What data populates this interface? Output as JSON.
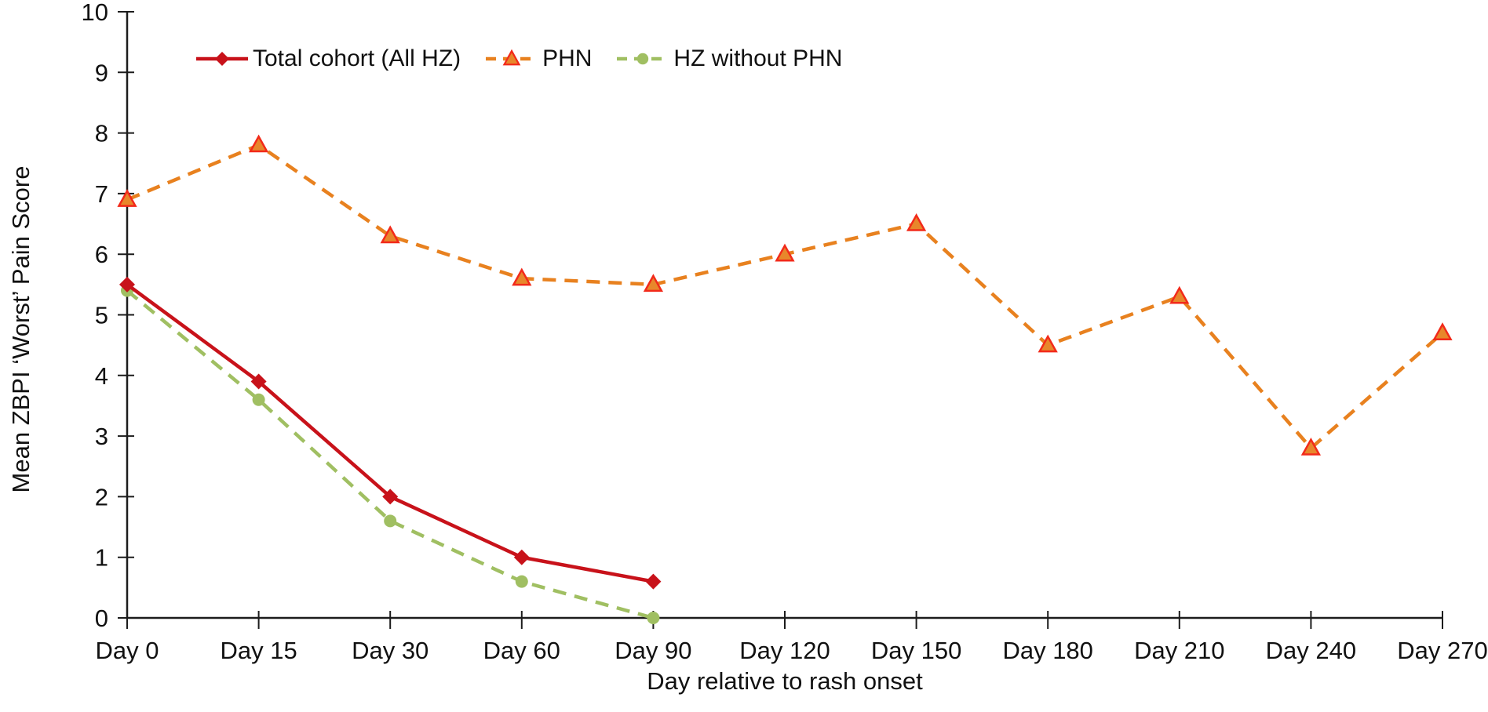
{
  "figure": {
    "background_color": "#ffffff",
    "text_color": "#111111",
    "axis_color": "#1c1c1c"
  },
  "chart_data": {
    "type": "line",
    "title": "",
    "xlabel": "Day relative to rash onset",
    "ylabel": "Mean ZBPI ‘Worst’ Pain Score",
    "categories": [
      "Day 0",
      "Day 15",
      "Day 30",
      "Day 60",
      "Day 90",
      "Day 120",
      "Day 150",
      "Day 180",
      "Day 210",
      "Day 240",
      "Day 270"
    ],
    "ylim": [
      0,
      10
    ],
    "ytick_step": 1,
    "yticks": [
      0,
      1,
      2,
      3,
      4,
      5,
      6,
      7,
      8,
      9,
      10
    ],
    "grid": false,
    "legend_position": "top-left-inside",
    "series": [
      {
        "name": "Total cohort (All HZ)",
        "values": [
          5.5,
          3.9,
          2.0,
          1.0,
          0.6,
          null,
          null,
          null,
          null,
          null,
          null
        ],
        "color": "#C8121A",
        "line_style": "solid",
        "marker": "diamond",
        "marker_fill": "#C8121A",
        "marker_stroke": "#C8121A"
      },
      {
        "name": "PHN",
        "values": [
          6.9,
          7.8,
          6.3,
          5.6,
          5.5,
          6.0,
          6.5,
          4.5,
          5.3,
          2.8,
          4.7
        ],
        "color": "#E8811F",
        "line_style": "dashed",
        "marker": "triangle",
        "marker_fill": "#E8872B",
        "marker_stroke": "#F22A1A"
      },
      {
        "name": "HZ without PHN",
        "values": [
          5.4,
          3.6,
          1.6,
          0.6,
          0.0,
          null,
          null,
          null,
          null,
          null,
          null
        ],
        "color": "#A0BF62",
        "line_style": "dashed",
        "marker": "circle",
        "marker_fill": "#A0BF62",
        "marker_stroke": "#A0BF62"
      }
    ]
  }
}
